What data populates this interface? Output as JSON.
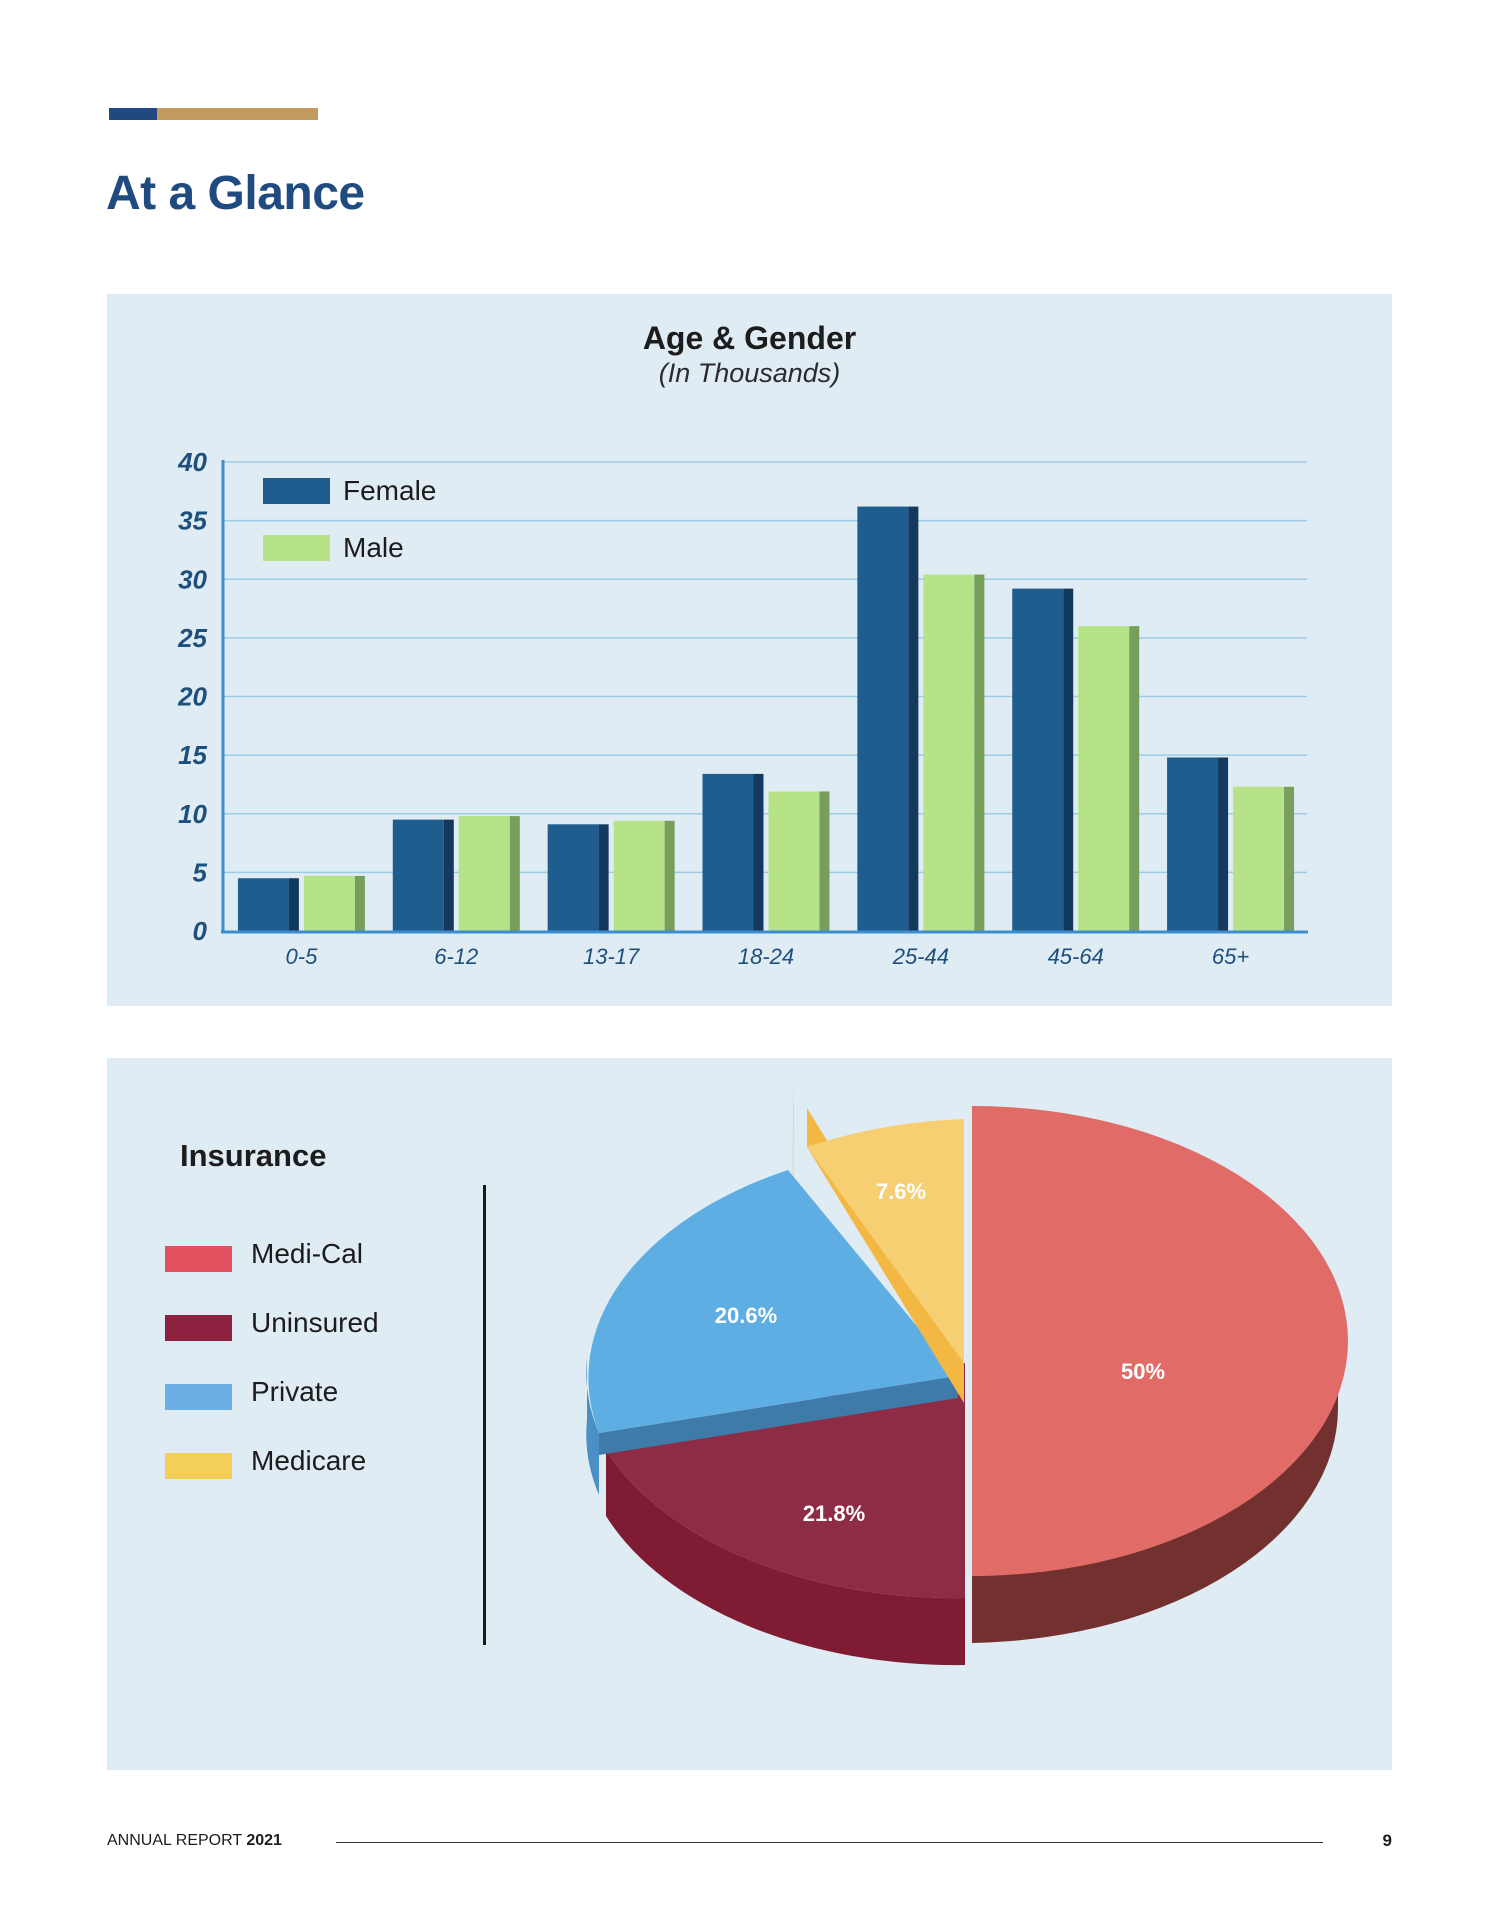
{
  "page": {
    "title": "At a Glance",
    "footer": {
      "report_label": "ANNUAL REPORT",
      "year": "2021",
      "page_number": "9"
    }
  },
  "colors": {
    "title": "#1f4b80",
    "accent_blue": "#21487f",
    "accent_gold": "#c09a5f",
    "panel_bg": "#e0ecf4",
    "female": "#1f5d8f",
    "male": "#b6e388"
  },
  "chart_data": [
    {
      "type": "bar",
      "title": "Age & Gender",
      "subtitle": "(In Thousands)",
      "categories": [
        "0-5",
        "6-12",
        "13-17",
        "18-24",
        "25-44",
        "45-64",
        "65+"
      ],
      "series": [
        {
          "name": "Female",
          "color": "#1f5d8f",
          "values": [
            4.5,
            9.5,
            9.1,
            13.4,
            36.2,
            29.2,
            14.8
          ]
        },
        {
          "name": "Male",
          "color": "#b6e388",
          "values": [
            4.7,
            9.8,
            9.4,
            11.9,
            30.4,
            26.0,
            12.3
          ]
        }
      ],
      "yticks": [
        "0",
        "5",
        "10",
        "15",
        "20",
        "25",
        "30",
        "35",
        "40"
      ],
      "ylim": [
        0,
        40
      ],
      "grid": true,
      "legend": "top-left"
    },
    {
      "type": "pie",
      "title": "Insurance",
      "labels": [
        "Medi-Cal",
        "Uninsured",
        "Private",
        "Medicare"
      ],
      "values": [
        50,
        21.8,
        20.6,
        7.6
      ],
      "value_labels": [
        "50%",
        "21.8%",
        "20.6%",
        "7.6%"
      ],
      "colors": [
        "#e06b67",
        "#8e2b45",
        "#5eaee4",
        "#f6cf72"
      ],
      "legend_colors": [
        "#e0505e",
        "#8e2040",
        "#6aaee4",
        "#f3cf5a"
      ],
      "legend": "left"
    }
  ]
}
